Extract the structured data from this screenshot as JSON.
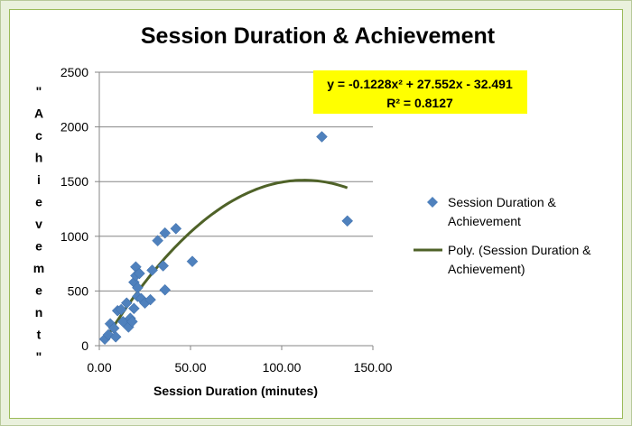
{
  "chart_data": {
    "type": "scatter",
    "title": "Session Duration & Achievement",
    "xlabel": "Session Duration (minutes)",
    "ylabel": "\"Achievement\"",
    "ylabel_letters": [
      "\"",
      "A",
      "c",
      "h",
      "i",
      "e",
      "v",
      "e",
      "m",
      "e",
      "n",
      "t",
      "\""
    ],
    "xlim": [
      0,
      150
    ],
    "ylim": [
      0,
      2500
    ],
    "x_ticks": [
      "0.00",
      "50.00",
      "100.00",
      "150.00"
    ],
    "x_tick_values": [
      0,
      50,
      100,
      150
    ],
    "y_ticks": [
      "0",
      "500",
      "1000",
      "1500",
      "2000",
      "2500"
    ],
    "y_tick_values": [
      0,
      500,
      1000,
      1500,
      2000,
      2500
    ],
    "grid": "horizontal",
    "legend_position": "right",
    "series": [
      {
        "name": "Session Duration & Achievement",
        "color": "#4f81bd",
        "marker": "diamond",
        "points": [
          [
            3,
            60
          ],
          [
            5,
            100
          ],
          [
            6,
            200
          ],
          [
            8,
            160
          ],
          [
            9,
            80
          ],
          [
            10,
            320
          ],
          [
            12,
            330
          ],
          [
            13,
            220
          ],
          [
            15,
            390
          ],
          [
            16,
            170
          ],
          [
            17,
            250
          ],
          [
            18,
            220
          ],
          [
            19,
            580
          ],
          [
            19,
            340
          ],
          [
            20,
            720
          ],
          [
            20,
            640
          ],
          [
            21,
            530
          ],
          [
            21,
            450
          ],
          [
            22,
            660
          ],
          [
            23,
            430
          ],
          [
            25,
            390
          ],
          [
            28,
            420
          ],
          [
            29,
            690
          ],
          [
            32,
            960
          ],
          [
            35,
            730
          ],
          [
            36,
            510
          ],
          [
            36,
            1030
          ],
          [
            42,
            1070
          ],
          [
            51,
            770
          ],
          [
            122,
            1910
          ],
          [
            136,
            1140
          ]
        ]
      }
    ],
    "trendline": {
      "name": "Poly. (Session Duration & Achievement)",
      "type": "polynomial",
      "order": 2,
      "color": "#4f6228",
      "coefficients": {
        "a": -0.1228,
        "b": 27.552,
        "c": -32.491
      },
      "x_range": [
        3,
        136
      ],
      "equation_label": "y = -0.1228x² + 27.552x - 32.491",
      "r2_label": "R² = 0.8127",
      "label_background": "#ffff00"
    }
  }
}
